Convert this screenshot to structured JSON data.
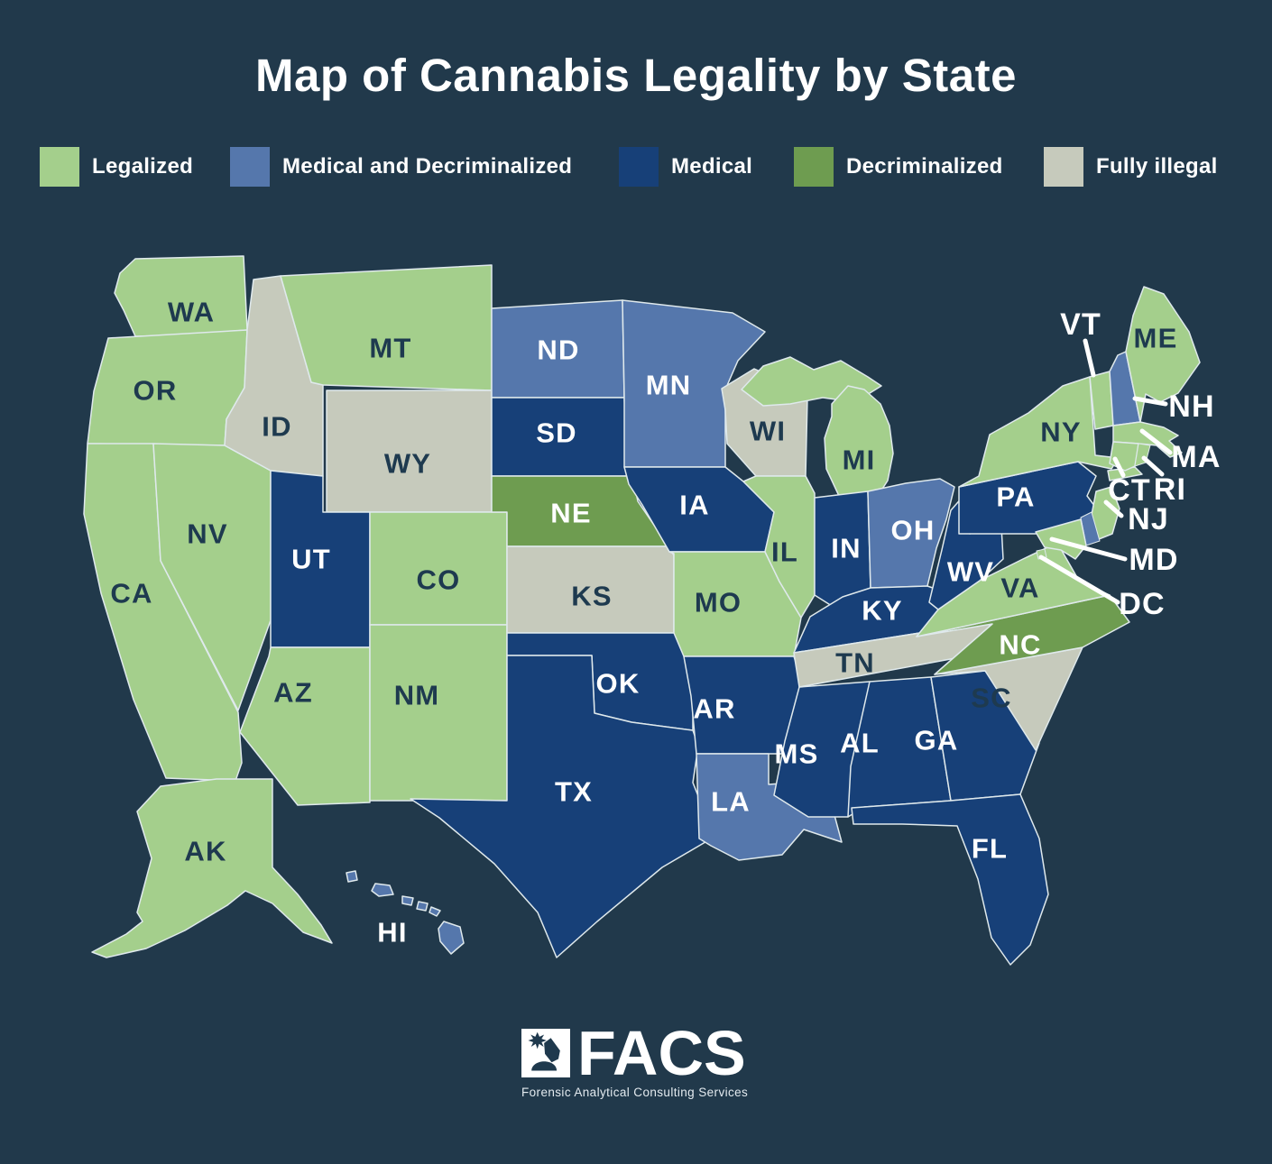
{
  "title": "Map of Cannabis Legality by State",
  "legend": {
    "items": [
      {
        "label": "Legalized",
        "color": "#a4cf8c",
        "category": "legalized"
      },
      {
        "label": "Medical and Decriminalized",
        "color": "#5577ac",
        "category": "medical_decriminalized"
      },
      {
        "label": "Medical",
        "color": "#174078",
        "category": "medical"
      },
      {
        "label": "Decriminalized",
        "color": "#6e9c50",
        "category": "decriminalized"
      },
      {
        "label": "Fully illegal",
        "color": "#c6cabc",
        "category": "fully_illegal"
      }
    ]
  },
  "map": {
    "background_color": "#21394b",
    "border_color": "#dfe9ec",
    "leader_color": "#ffffff",
    "label_colors": {
      "dark": "#1e3a4f",
      "light": "#ffffff"
    },
    "category_colors": {
      "legalized": "#a4cf8c",
      "medical_decriminalized": "#5577ac",
      "medical": "#174078",
      "decriminalized": "#6e9c50",
      "fully_illegal": "#c6cabc"
    },
    "states": [
      {
        "id": "WA",
        "label": "WA",
        "category": "legalized"
      },
      {
        "id": "OR",
        "label": "OR",
        "category": "legalized"
      },
      {
        "id": "CA",
        "label": "CA",
        "category": "legalized"
      },
      {
        "id": "NV",
        "label": "NV",
        "category": "legalized"
      },
      {
        "id": "ID",
        "label": "ID",
        "category": "fully_illegal"
      },
      {
        "id": "MT",
        "label": "MT",
        "category": "legalized"
      },
      {
        "id": "WY",
        "label": "WY",
        "category": "fully_illegal"
      },
      {
        "id": "UT",
        "label": "UT",
        "category": "medical"
      },
      {
        "id": "CO",
        "label": "CO",
        "category": "legalized"
      },
      {
        "id": "AZ",
        "label": "AZ",
        "category": "legalized"
      },
      {
        "id": "NM",
        "label": "NM",
        "category": "legalized"
      },
      {
        "id": "ND",
        "label": "ND",
        "category": "medical_decriminalized"
      },
      {
        "id": "SD",
        "label": "SD",
        "category": "medical"
      },
      {
        "id": "NE",
        "label": "NE",
        "category": "decriminalized"
      },
      {
        "id": "KS",
        "label": "KS",
        "category": "fully_illegal"
      },
      {
        "id": "OK",
        "label": "OK",
        "category": "medical"
      },
      {
        "id": "TX",
        "label": "TX",
        "category": "medical"
      },
      {
        "id": "MN",
        "label": "MN",
        "category": "medical_decriminalized"
      },
      {
        "id": "IA",
        "label": "IA",
        "category": "medical"
      },
      {
        "id": "MO",
        "label": "MO",
        "category": "legalized"
      },
      {
        "id": "AR",
        "label": "AR",
        "category": "medical"
      },
      {
        "id": "LA",
        "label": "LA",
        "category": "medical_decriminalized"
      },
      {
        "id": "WI",
        "label": "WI",
        "category": "fully_illegal"
      },
      {
        "id": "IL",
        "label": "IL",
        "category": "legalized"
      },
      {
        "id": "MI",
        "label": "MI",
        "category": "legalized"
      },
      {
        "id": "IN",
        "label": "IN",
        "category": "medical"
      },
      {
        "id": "OH",
        "label": "OH",
        "category": "medical_decriminalized"
      },
      {
        "id": "KY",
        "label": "KY",
        "category": "medical"
      },
      {
        "id": "TN",
        "label": "TN",
        "category": "fully_illegal"
      },
      {
        "id": "MS",
        "label": "MS",
        "category": "medical"
      },
      {
        "id": "AL",
        "label": "AL",
        "category": "medical"
      },
      {
        "id": "GA",
        "label": "GA",
        "category": "medical"
      },
      {
        "id": "FL",
        "label": "FL",
        "category": "medical"
      },
      {
        "id": "SC",
        "label": "SC",
        "category": "fully_illegal"
      },
      {
        "id": "NC",
        "label": "NC",
        "category": "decriminalized"
      },
      {
        "id": "VA",
        "label": "VA",
        "category": "legalized"
      },
      {
        "id": "WV",
        "label": "WV",
        "category": "medical"
      },
      {
        "id": "PA",
        "label": "PA",
        "category": "medical"
      },
      {
        "id": "NY",
        "label": "NY",
        "category": "legalized"
      },
      {
        "id": "VT",
        "label": "VT",
        "category": "legalized"
      },
      {
        "id": "NH",
        "label": "NH",
        "category": "medical_decriminalized"
      },
      {
        "id": "ME",
        "label": "ME",
        "category": "legalized"
      },
      {
        "id": "MA",
        "label": "MA",
        "category": "legalized"
      },
      {
        "id": "CT",
        "label": "CT",
        "category": "legalized"
      },
      {
        "id": "RI",
        "label": "RI",
        "category": "legalized"
      },
      {
        "id": "NJ",
        "label": "NJ",
        "category": "legalized"
      },
      {
        "id": "DE",
        "label": "",
        "category": "medical_decriminalized"
      },
      {
        "id": "MD",
        "label": "MD",
        "category": "legalized"
      },
      {
        "id": "DC",
        "label": "DC",
        "category": "legalized"
      },
      {
        "id": "AK",
        "label": "AK",
        "category": "legalized"
      },
      {
        "id": "HI",
        "label": "HI",
        "category": "medical_decriminalized"
      }
    ]
  },
  "logo": {
    "name": "FACS",
    "tagline": "Forensic Analytical Consulting Services"
  }
}
